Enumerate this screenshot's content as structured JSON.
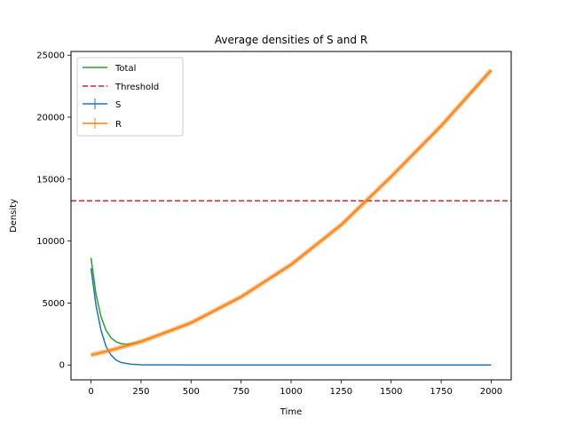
{
  "chart_data": {
    "type": "line",
    "title": "Average densities of S and R",
    "xlabel": "Time",
    "ylabel": "Density",
    "xlim": [
      -100,
      2100
    ],
    "ylim": [
      -1200,
      25300
    ],
    "xticks": [
      0,
      250,
      500,
      750,
      1000,
      1250,
      1500,
      1750,
      2000
    ],
    "yticks": [
      0,
      5000,
      10000,
      15000,
      20000,
      25000
    ],
    "grid": false,
    "legend_position": "upper-left",
    "threshold": {
      "name": "Threshold",
      "y": 13250,
      "color": "#d62728",
      "style": "dashed"
    },
    "series": [
      {
        "name": "Total",
        "color": "#2ca02c",
        "x": [
          0,
          25,
          50,
          75,
          100,
          125,
          150,
          175,
          200,
          250,
          300,
          400,
          500,
          750,
          1000,
          1250,
          1500,
          1750,
          2000
        ],
        "y": [
          8650,
          5700,
          3900,
          2800,
          2200,
          1870,
          1720,
          1680,
          1700,
          1900,
          2200,
          2800,
          3400,
          5500,
          8100,
          11300,
          15200,
          19300,
          23800
        ]
      },
      {
        "name": "S",
        "color": "#1f77b4",
        "x": [
          0,
          25,
          50,
          75,
          100,
          125,
          150,
          200,
          250,
          300,
          400,
          500,
          1000,
          1500,
          2000
        ],
        "y": [
          7800,
          4800,
          2800,
          1500,
          800,
          400,
          200,
          60,
          20,
          10,
          5,
          0,
          0,
          0,
          0
        ]
      },
      {
        "name": "R",
        "color": "#ff7f0e",
        "x": [
          0,
          100,
          200,
          250,
          300,
          400,
          500,
          750,
          1000,
          1250,
          1500,
          1750,
          2000
        ],
        "y": [
          800,
          1200,
          1650,
          1880,
          2180,
          2790,
          3400,
          5500,
          8100,
          11300,
          15200,
          19300,
          23800
        ]
      }
    ]
  }
}
